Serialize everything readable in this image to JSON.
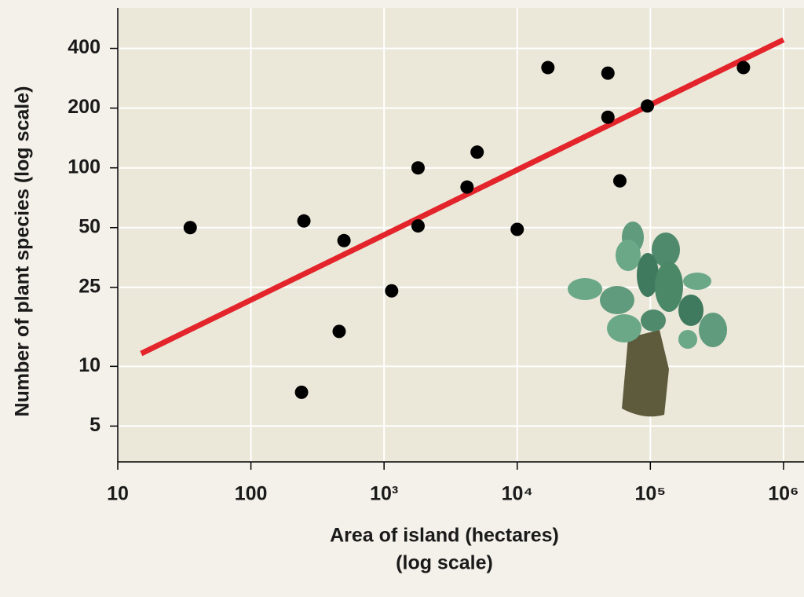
{
  "chart_data": {
    "type": "scatter",
    "x_label": [
      "Area of island (hectares)",
      "(log scale)"
    ],
    "y_label": "Number of plant species (log scale)",
    "log_x": true,
    "log_y": true,
    "grid": true,
    "xlim": [
      10,
      1350000
    ],
    "ylim": [
      3.3,
      640
    ],
    "xticks": [
      10,
      100,
      {
        "value": 1000,
        "label": "10³"
      },
      {
        "value": 10000,
        "label": "10⁴"
      },
      {
        "value": 100000,
        "label": "10⁵"
      },
      {
        "value": 1000000,
        "label": "10⁶"
      }
    ],
    "yticks": [
      5,
      10,
      25,
      50,
      100,
      200,
      400
    ],
    "color": "#000000",
    "x": [
      35,
      250,
      240,
      460,
      500,
      1140,
      1800,
      1800,
      4200,
      5000,
      10000,
      17000,
      48000,
      48000,
      59000,
      95000,
      500000
    ],
    "y": [
      50,
      54,
      7.4,
      15,
      43,
      24,
      100,
      51,
      80,
      120,
      49,
      320,
      300,
      180,
      86,
      205,
      320
    ],
    "fit_line": {
      "color": "#e3242b",
      "x": [
        15,
        1000000
      ],
      "y": [
        11.6,
        442
      ]
    }
  }
}
